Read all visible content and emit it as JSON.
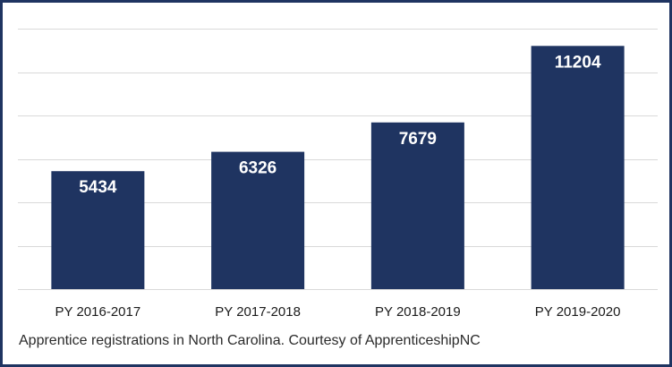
{
  "chart_data": {
    "type": "bar",
    "categories": [
      "PY 2016-2017",
      "PY 2017-2018",
      "PY 2018-2019",
      "PY 2019-2020"
    ],
    "values": [
      5434,
      6326,
      7679,
      11204
    ],
    "ylim": [
      0,
      12000
    ],
    "grid": true,
    "legend": "none",
    "bar_color": "#1f3461",
    "label_color": "#ffffff",
    "grid_color": "#d9d9d9"
  },
  "caption": "Apprentice registrations in North Carolina. Courtesy of ApprenticeshipNC"
}
